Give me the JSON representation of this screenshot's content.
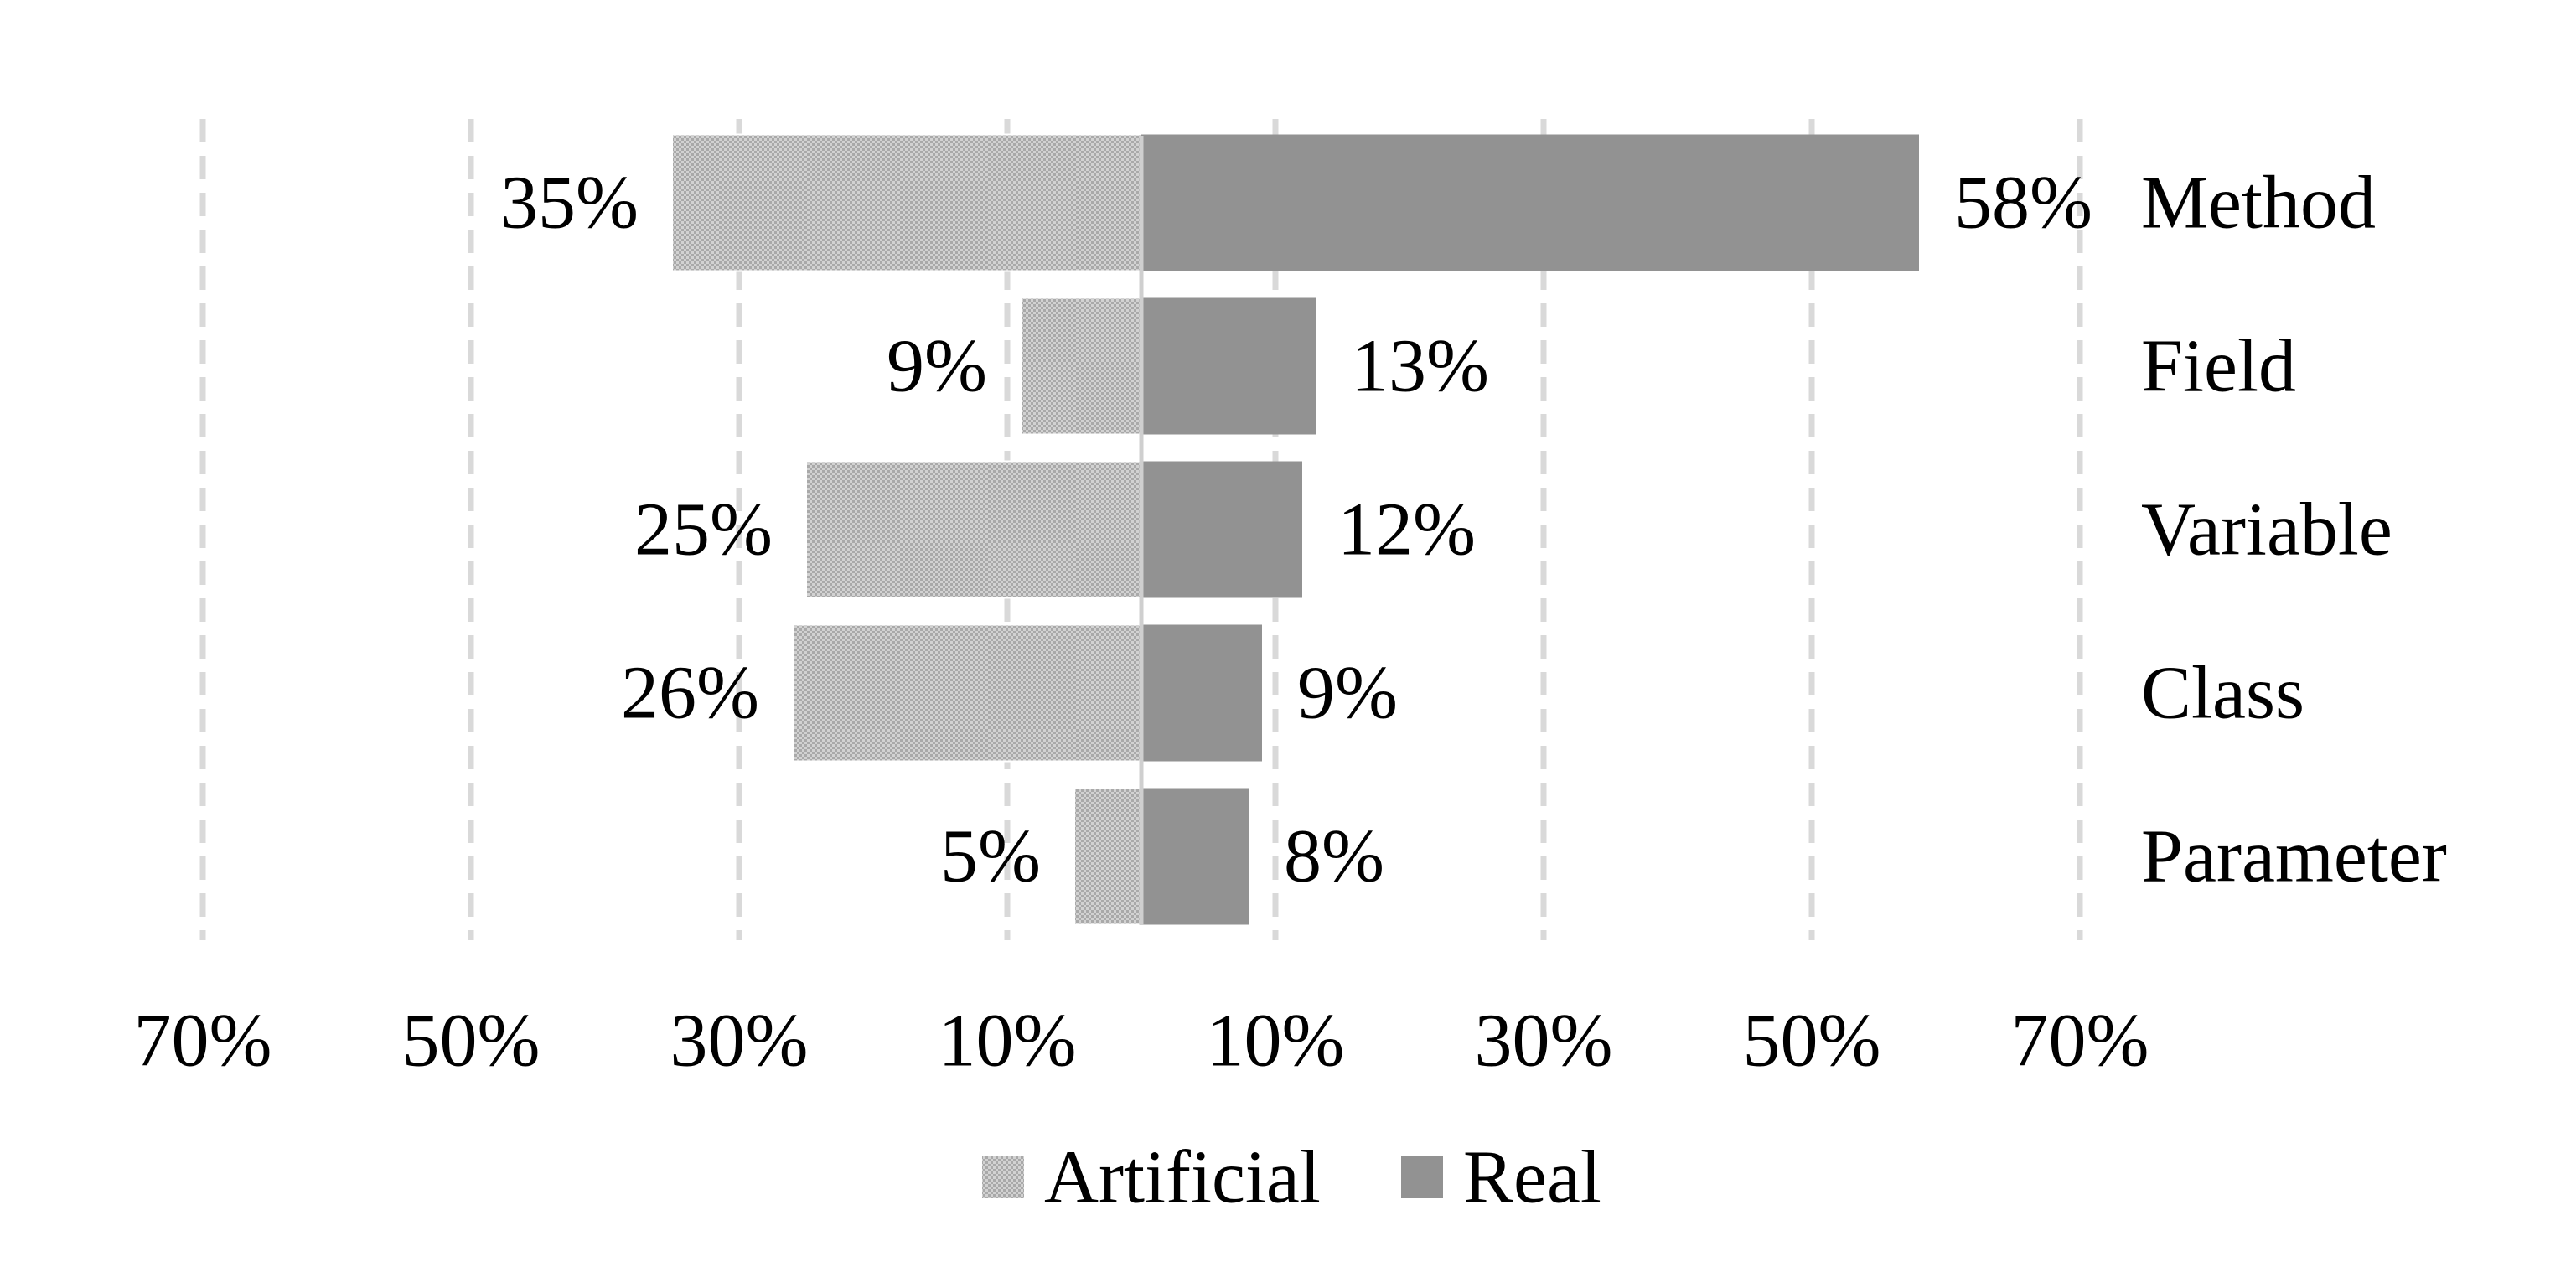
{
  "chart_data": {
    "type": "bar",
    "orientation": "horizontal-diverging",
    "categories": [
      "Method",
      "Field",
      "Variable",
      "Class",
      "Parameter"
    ],
    "series": [
      {
        "name": "Artificial",
        "values": [
          35,
          9,
          25,
          26,
          5
        ],
        "side": "left",
        "color": "#bdbdbd",
        "pattern": "crosshatch"
      },
      {
        "name": "Real",
        "values": [
          58,
          13,
          12,
          9,
          8
        ],
        "side": "right",
        "color": "#929292"
      }
    ],
    "value_labels": {
      "Artificial": [
        "35%",
        "9%",
        "25%",
        "26%",
        "5%"
      ],
      "Real": [
        "58%",
        "13%",
        "12%",
        "9%",
        "8%"
      ]
    },
    "x_ticks": [
      -70,
      -50,
      -30,
      -10,
      10,
      30,
      50,
      70
    ],
    "x_tick_labels": [
      "70%",
      "50%",
      "30%",
      "10%",
      "10%",
      "30%",
      "50%",
      "70%"
    ],
    "xlim": [
      -70,
      70
    ],
    "gridlines": "dashed vertical",
    "category_labels_position": "right",
    "legend": {
      "position": "bottom",
      "entries": [
        "Artificial",
        "Real"
      ]
    }
  }
}
